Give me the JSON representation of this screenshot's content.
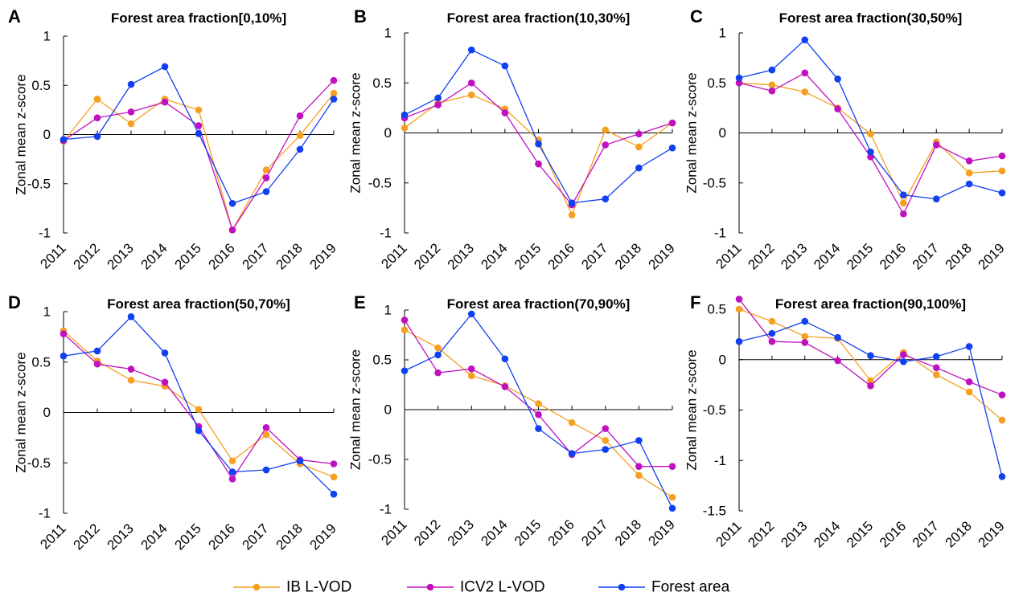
{
  "legend": [
    {
      "label": "IB L-VOD",
      "color": "#f5a020"
    },
    {
      "label": "ICV2 L-VOD",
      "color": "#c010c0"
    },
    {
      "label": "Forest area",
      "color": "#1040f0"
    }
  ],
  "chart_data": [
    {
      "letter": "A",
      "type": "line",
      "title": "Forest area fraction[0,10%]",
      "xlabel": "",
      "ylabel": "Zonal mean z-score",
      "ylim": [
        -1,
        1
      ],
      "yticks": [
        -1,
        -0.5,
        0,
        0.5,
        1
      ],
      "ytick_labels": [
        "-1",
        "-0.5",
        "0",
        "0.5",
        "1"
      ],
      "categories": [
        "2011",
        "2012",
        "2013",
        "2014",
        "2015",
        "2016",
        "2017",
        "2018",
        "2019"
      ],
      "series": [
        {
          "name": "IB L-VOD",
          "values": [
            -0.07,
            0.36,
            0.11,
            0.36,
            0.25,
            -0.97,
            -0.36,
            -0.01,
            0.42
          ]
        },
        {
          "name": "ICV2 L-VOD",
          "values": [
            -0.06,
            0.17,
            0.23,
            0.33,
            0.09,
            -0.97,
            -0.44,
            0.19,
            0.55
          ]
        },
        {
          "name": "Forest area",
          "values": [
            -0.05,
            -0.02,
            0.51,
            0.69,
            0.01,
            -0.7,
            -0.58,
            -0.15,
            0.36
          ]
        }
      ]
    },
    {
      "letter": "B",
      "type": "line",
      "title": "Forest area fraction(10,30%]",
      "xlabel": "",
      "ylabel": "Zonal mean z-score",
      "ylim": [
        -1,
        1
      ],
      "yticks": [
        -1,
        -0.5,
        0,
        0.5,
        1
      ],
      "ytick_labels": [
        "-1",
        "-0.5",
        "0",
        "0.5",
        "1"
      ],
      "categories": [
        "2011",
        "2012",
        "2013",
        "2014",
        "2015",
        "2016",
        "2017",
        "2018",
        "2019"
      ],
      "series": [
        {
          "name": "IB L-VOD",
          "values": [
            0.05,
            0.3,
            0.38,
            0.24,
            -0.07,
            -0.82,
            0.03,
            -0.14,
            0.1
          ]
        },
        {
          "name": "ICV2 L-VOD",
          "values": [
            0.15,
            0.28,
            0.5,
            0.2,
            -0.31,
            -0.72,
            -0.12,
            -0.01,
            0.1
          ]
        },
        {
          "name": "Forest area",
          "values": [
            0.18,
            0.35,
            0.83,
            0.67,
            -0.11,
            -0.7,
            -0.66,
            -0.35,
            -0.15
          ]
        }
      ]
    },
    {
      "letter": "C",
      "type": "line",
      "title": "Forest area fraction(30,50%]",
      "xlabel": "",
      "ylabel": "Zonal mean z-score",
      "ylim": [
        -1,
        1
      ],
      "yticks": [
        -1,
        -0.5,
        0,
        0.5,
        1
      ],
      "ytick_labels": [
        "-1",
        "-0.5",
        "0",
        "0.5",
        "1"
      ],
      "categories": [
        "2011",
        "2012",
        "2013",
        "2014",
        "2015",
        "2016",
        "2017",
        "2018",
        "2019"
      ],
      "series": [
        {
          "name": "IB L-VOD",
          "values": [
            0.5,
            0.48,
            0.41,
            0.25,
            -0.01,
            -0.7,
            -0.09,
            -0.4,
            -0.38
          ]
        },
        {
          "name": "ICV2 L-VOD",
          "values": [
            0.5,
            0.42,
            0.6,
            0.24,
            -0.24,
            -0.81,
            -0.12,
            -0.28,
            -0.23
          ]
        },
        {
          "name": "Forest area",
          "values": [
            0.55,
            0.63,
            0.93,
            0.54,
            -0.19,
            -0.62,
            -0.66,
            -0.51,
            -0.6
          ]
        }
      ]
    },
    {
      "letter": "D",
      "type": "line",
      "title": "Forest area fraction(50,70%]",
      "xlabel": "",
      "ylabel": "Zonal mean z-score",
      "ylim": [
        -1,
        1
      ],
      "yticks": [
        -1,
        -0.5,
        0,
        0.5,
        1
      ],
      "ytick_labels": [
        "-1",
        "-0.5",
        "0",
        "0.5",
        "1"
      ],
      "categories": [
        "2011",
        "2012",
        "2013",
        "2014",
        "2015",
        "2016",
        "2017",
        "2018",
        "2019"
      ],
      "series": [
        {
          "name": "IB L-VOD",
          "values": [
            0.81,
            0.51,
            0.32,
            0.26,
            0.03,
            -0.48,
            -0.22,
            -0.51,
            -0.64
          ]
        },
        {
          "name": "ICV2 L-VOD",
          "values": [
            0.78,
            0.48,
            0.43,
            0.3,
            -0.14,
            -0.66,
            -0.15,
            -0.47,
            -0.51
          ]
        },
        {
          "name": "Forest area",
          "values": [
            0.56,
            0.61,
            0.95,
            0.59,
            -0.18,
            -0.59,
            -0.57,
            -0.48,
            -0.81
          ]
        }
      ]
    },
    {
      "letter": "E",
      "type": "line",
      "title": "Forest area fraction(70,90%]",
      "xlabel": "",
      "ylabel": "Zonal mean z-score",
      "ylim": [
        -1,
        1
      ],
      "yticks": [
        -1,
        -0.5,
        0,
        0.5,
        1
      ],
      "ytick_labels": [
        "-1",
        "-0.5",
        "0",
        "0.5",
        "1"
      ],
      "categories": [
        "2011",
        "2012",
        "2013",
        "2014",
        "2015",
        "2016",
        "2017",
        "2018",
        "2019"
      ],
      "series": [
        {
          "name": "IB L-VOD",
          "values": [
            0.8,
            0.62,
            0.34,
            0.24,
            0.06,
            -0.13,
            -0.31,
            -0.66,
            -0.88
          ]
        },
        {
          "name": "ICV2 L-VOD",
          "values": [
            0.9,
            0.37,
            0.41,
            0.23,
            -0.05,
            -0.45,
            -0.19,
            -0.57,
            -0.57
          ]
        },
        {
          "name": "Forest area",
          "values": [
            0.39,
            0.55,
            0.96,
            0.51,
            -0.19,
            -0.44,
            -0.4,
            -0.31,
            -0.99
          ]
        }
      ]
    },
    {
      "letter": "F",
      "type": "line",
      "title": "Forest area fraction(90,100%]",
      "xlabel": "",
      "ylabel": "Zonal mean z-score",
      "ylim": [
        -1.5,
        0.5
      ],
      "yticks": [
        -1.5,
        -1,
        -0.5,
        0,
        0.5
      ],
      "ytick_labels": [
        "-1.5",
        "-1",
        "-0.5",
        "0",
        "0.5"
      ],
      "categories": [
        "2011",
        "2012",
        "2013",
        "2014",
        "2015",
        "2016",
        "2017",
        "2018",
        "2019"
      ],
      "series": [
        {
          "name": "IB L-VOD",
          "values": [
            0.5,
            0.38,
            0.23,
            0.21,
            -0.21,
            0.07,
            -0.15,
            -0.32,
            -0.6
          ]
        },
        {
          "name": "ICV2 L-VOD",
          "values": [
            0.6,
            0.18,
            0.17,
            -0.01,
            -0.26,
            0.05,
            -0.08,
            -0.22,
            -0.35
          ]
        },
        {
          "name": "Forest area",
          "values": [
            0.18,
            0.26,
            0.38,
            0.22,
            0.04,
            -0.02,
            0.03,
            0.13,
            -1.16
          ]
        }
      ]
    }
  ]
}
